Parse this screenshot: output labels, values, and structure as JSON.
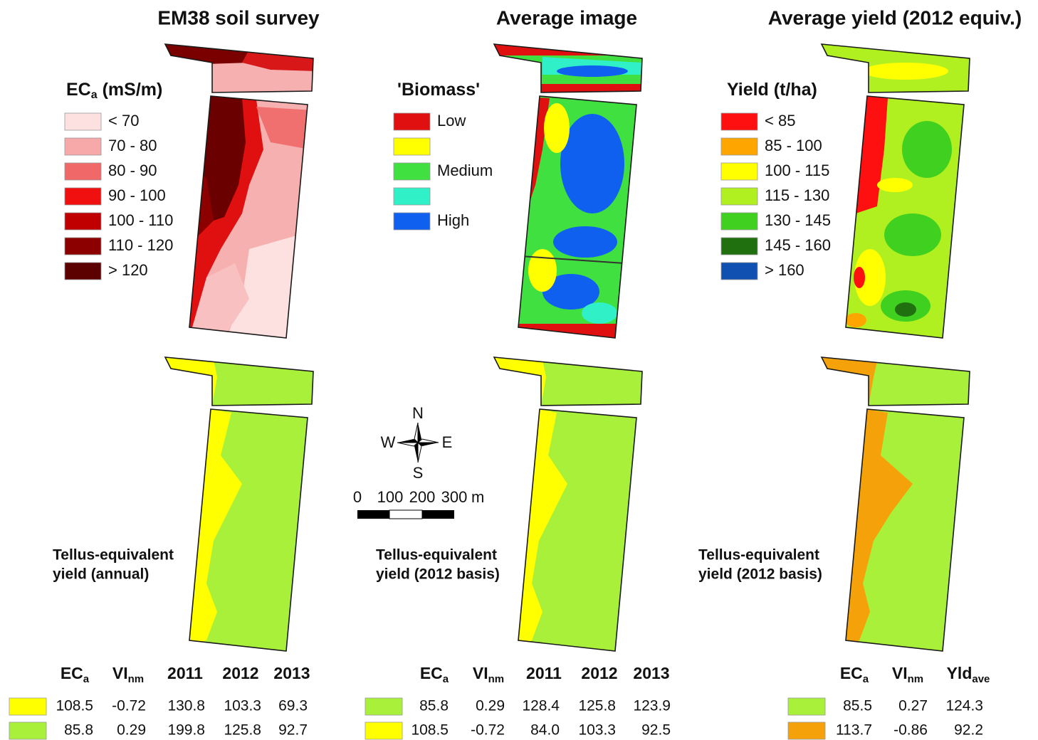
{
  "titles": [
    "EM38 soil survey",
    "Average image",
    "Average yield (2012 equiv.)"
  ],
  "legends": [
    {
      "title": {
        "text": "EC",
        "sub": "a",
        "rest": " (mS/m)"
      },
      "items": [
        {
          "label": "< 70",
          "color": "#fde0e0"
        },
        {
          "label": "70 - 80",
          "color": "#f7a8a8"
        },
        {
          "label": "80 - 90",
          "color": "#f06868"
        },
        {
          "label": "90 - 100",
          "color": "#f01010"
        },
        {
          "label": "100 - 110",
          "color": "#c00000"
        },
        {
          "label": "110 - 120",
          "color": "#8c0000"
        },
        {
          "label": "> 120",
          "color": "#5c0000"
        }
      ]
    },
    {
      "title": {
        "text": "'Biomass'"
      },
      "items": [
        {
          "label": "Low",
          "color": "#e01010"
        },
        {
          "color": "#ffff00"
        },
        {
          "label": "Medium",
          "color": "#40e040"
        },
        {
          "color": "#30f0c8"
        },
        {
          "label": "High",
          "color": "#1060f0"
        }
      ]
    },
    {
      "title": {
        "text": "Yield (t/ha)"
      },
      "items": [
        {
          "label": "< 85",
          "color": "#ff1010"
        },
        {
          "label": "85 - 100",
          "color": "#ffa500"
        },
        {
          "label": "100 - 115",
          "color": "#ffff00"
        },
        {
          "label": "115 - 130",
          "color": "#b0f020"
        },
        {
          "label": "130 - 145",
          "color": "#40d020"
        },
        {
          "label": "145 - 160",
          "color": "#207010"
        },
        {
          "label": "> 160",
          "color": "#1050b0"
        }
      ]
    }
  ],
  "map_labels": [
    [
      "Tellus-equivalent",
      "yield (annual)"
    ],
    [
      "Tellus-equivalent",
      "yield (2012 basis)"
    ],
    [
      "Tellus-equivalent",
      "yield (2012 basis)"
    ]
  ],
  "compass": {
    "n": "N",
    "e": "E",
    "s": "S",
    "w": "W"
  },
  "scale_bar": {
    "labels": [
      "0",
      "100",
      "200",
      "300"
    ],
    "unit": "m"
  },
  "tables": [
    {
      "headers": [
        {
          "text": "EC",
          "sub": "a"
        },
        {
          "text": "VI",
          "sub": "nm"
        },
        {
          "text": "2011"
        },
        {
          "text": "2012"
        },
        {
          "text": "2013"
        }
      ],
      "rows": [
        {
          "color": "#ffff00",
          "cells": [
            "108.5",
            "-0.72",
            "130.8",
            "103.3",
            "69.3"
          ]
        },
        {
          "color": "#a8f03a",
          "cells": [
            "85.8",
            "0.29",
            "199.8",
            "125.8",
            "92.7"
          ]
        }
      ]
    },
    {
      "headers": [
        {
          "text": "EC",
          "sub": "a"
        },
        {
          "text": "VI",
          "sub": "nm"
        },
        {
          "text": "2011"
        },
        {
          "text": "2012"
        },
        {
          "text": "2013"
        }
      ],
      "rows": [
        {
          "color": "#a8f03a",
          "cells": [
            "85.8",
            "0.29",
            "128.4",
            "125.8",
            "123.9"
          ]
        },
        {
          "color": "#ffff00",
          "cells": [
            "108.5",
            "-0.72",
            "84.0",
            "103.3",
            "92.5"
          ]
        }
      ]
    },
    {
      "headers": [
        {
          "text": "EC",
          "sub": "a"
        },
        {
          "text": "VI",
          "sub": "nm"
        },
        {
          "text": "Yld",
          "sub": "ave"
        }
      ],
      "rows": [
        {
          "color": "#a8f03a",
          "cells": [
            "85.5",
            "0.27",
            "124.3"
          ]
        },
        {
          "color": "#f5a20a",
          "cells": [
            "113.7",
            "-0.86",
            "92.2"
          ]
        }
      ]
    }
  ]
}
